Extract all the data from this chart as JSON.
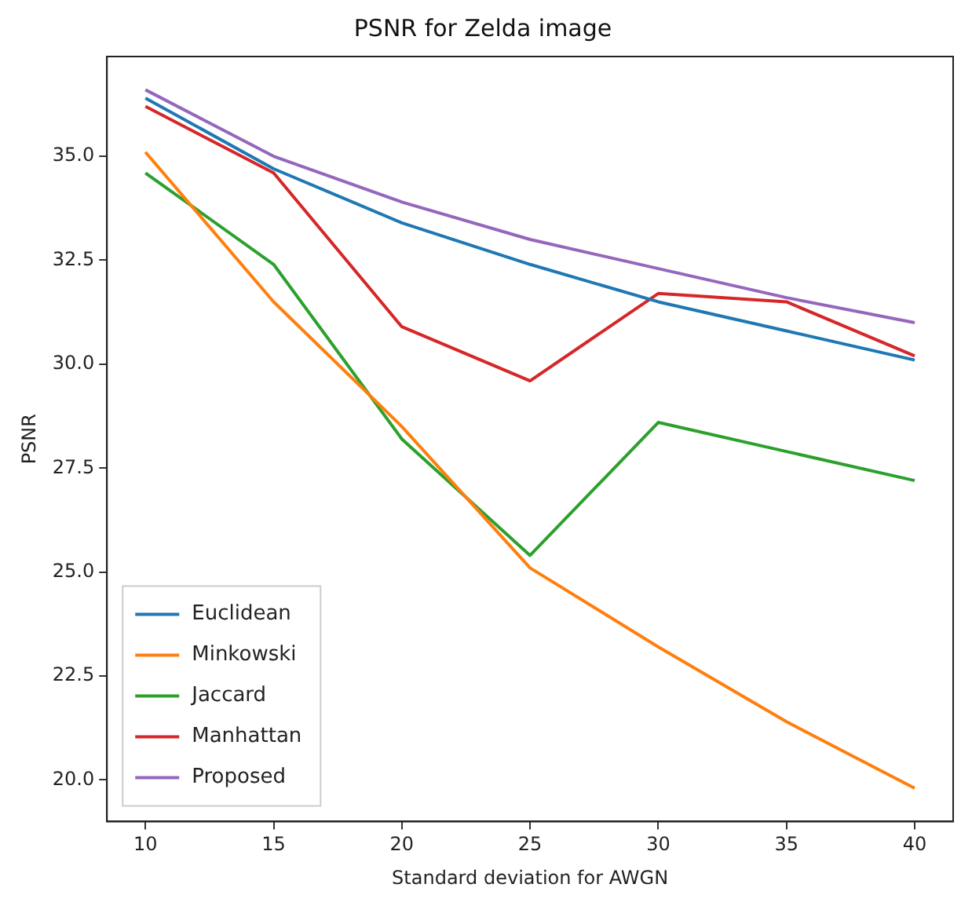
{
  "chart_data": {
    "type": "line",
    "title": "PSNR for Zelda image",
    "xlabel": "Standard deviation for AWGN",
    "ylabel": "PSNR",
    "x": [
      10,
      15,
      20,
      25,
      30,
      35,
      40
    ],
    "series": [
      {
        "name": "Euclidean",
        "color": "#1f77b4",
        "values": [
          36.4,
          34.7,
          33.4,
          32.4,
          31.5,
          30.8,
          30.1
        ]
      },
      {
        "name": "Minkowski",
        "color": "#ff7f0e",
        "values": [
          35.1,
          31.5,
          28.5,
          25.1,
          23.2,
          21.4,
          19.8
        ]
      },
      {
        "name": "Jaccard",
        "color": "#2ca02c",
        "values": [
          34.6,
          32.4,
          28.2,
          25.4,
          28.6,
          27.9,
          27.2
        ]
      },
      {
        "name": "Manhattan",
        "color": "#d62728",
        "values": [
          36.2,
          34.6,
          30.9,
          29.6,
          31.7,
          31.5,
          30.2
        ]
      },
      {
        "name": "Proposed",
        "color": "#9467bd",
        "values": [
          36.6,
          35.0,
          33.9,
          33.0,
          32.3,
          31.6,
          31.0
        ]
      }
    ],
    "xlim": [
      8.5,
      41.5
    ],
    "xticks": [
      10,
      15,
      20,
      25,
      30,
      35,
      40
    ],
    "ylim": [
      19.0,
      37.4
    ],
    "yticks": [
      {
        "value": 20,
        "label": "20.0"
      },
      {
        "value": 22.5,
        "label": "22.5"
      },
      {
        "value": 25,
        "label": "25.0"
      },
      {
        "value": 27.5,
        "label": "27.5"
      },
      {
        "value": 30,
        "label": "30.0"
      },
      {
        "value": 32.5,
        "label": "32.5"
      },
      {
        "value": 35,
        "label": "35.0"
      }
    ],
    "grid": false,
    "legend": "bottom left",
    "marker": "none",
    "line_style": "solid"
  }
}
